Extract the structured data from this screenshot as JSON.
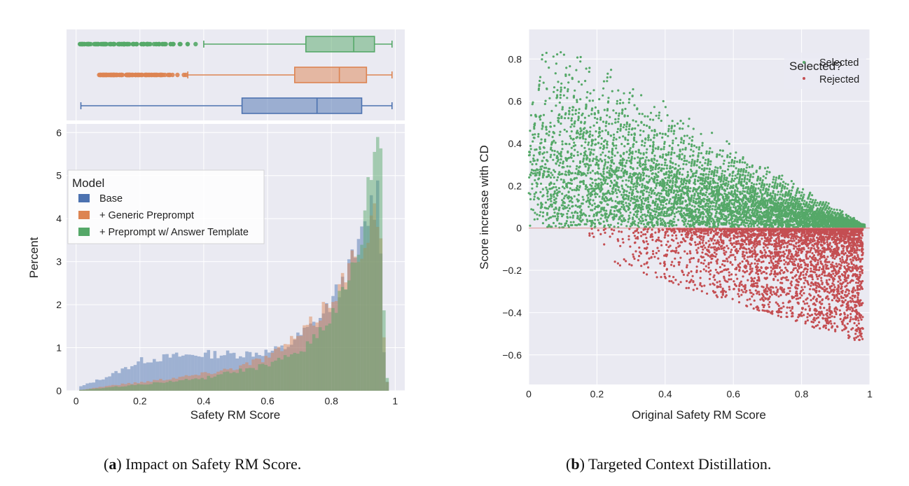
{
  "chart_data": [
    {
      "type": "boxplot",
      "panel": "a-top",
      "orientation": "horizontal",
      "xlim": [
        -0.03,
        1.03
      ],
      "series": [
        {
          "name": "+ Preprompt w/ Answer Template",
          "color": "#55a868",
          "whisker_low": 0.4,
          "q1": 0.72,
          "median": 0.87,
          "q3": 0.935,
          "whisker_high": 0.99,
          "outliers_from": 0.01,
          "outliers_to": 0.4
        },
        {
          "name": "+ Generic Preprompt",
          "color": "#dd8452",
          "whisker_low": 0.35,
          "q1": 0.685,
          "median": 0.825,
          "q3": 0.91,
          "whisker_high": 0.99,
          "outliers_from": 0.07,
          "outliers_to": 0.35
        },
        {
          "name": "Base",
          "color": "#4c72b0",
          "whisker_low": 0.015,
          "q1": 0.52,
          "median": 0.755,
          "q3": 0.895,
          "whisker_high": 0.99,
          "outliers_from": null,
          "outliers_to": null
        }
      ]
    },
    {
      "type": "histogram",
      "panel": "a-bottom",
      "xlabel": "Safety RM Score",
      "ylabel": "Percent",
      "xlim": [
        -0.03,
        1.03
      ],
      "ylim": [
        0,
        6.2
      ],
      "xticks": [
        "0",
        "0.2",
        "0.4",
        "0.6",
        "0.8",
        "1"
      ],
      "xtick_values": [
        0,
        0.2,
        0.4,
        0.6,
        0.8,
        1
      ],
      "yticks": [
        "0",
        "1",
        "2",
        "3",
        "4",
        "5",
        "6"
      ],
      "ytick_values": [
        0,
        1,
        2,
        3,
        4,
        5,
        6
      ],
      "bin_width": 0.01,
      "bins_start": 0.01,
      "series": [
        {
          "name": "Base",
          "color": "#4c72b0",
          "anchors": [
            [
              0.01,
              0.1
            ],
            [
              0.1,
              0.35
            ],
            [
              0.2,
              0.7
            ],
            [
              0.3,
              0.8
            ],
            [
              0.4,
              0.85
            ],
            [
              0.5,
              0.85
            ],
            [
              0.6,
              0.9
            ],
            [
              0.65,
              1.0
            ],
            [
              0.7,
              1.3
            ],
            [
              0.75,
              1.6
            ],
            [
              0.8,
              2.1
            ],
            [
              0.85,
              2.8
            ],
            [
              0.88,
              3.3
            ],
            [
              0.9,
              3.8
            ],
            [
              0.92,
              4.3
            ],
            [
              0.94,
              4.6
            ],
            [
              0.95,
              3.5
            ],
            [
              0.96,
              1.0
            ],
            [
              0.97,
              0.2
            ]
          ]
        },
        {
          "name": "+ Generic Preprompt",
          "color": "#dd8452",
          "anchors": [
            [
              0.01,
              0.02
            ],
            [
              0.1,
              0.12
            ],
            [
              0.2,
              0.2
            ],
            [
              0.3,
              0.3
            ],
            [
              0.4,
              0.4
            ],
            [
              0.5,
              0.55
            ],
            [
              0.6,
              0.8
            ],
            [
              0.65,
              1.05
            ],
            [
              0.7,
              1.3
            ],
            [
              0.75,
              1.7
            ],
            [
              0.8,
              2.2
            ],
            [
              0.85,
              2.8
            ],
            [
              0.88,
              3.3
            ],
            [
              0.9,
              3.6
            ],
            [
              0.92,
              4.0
            ],
            [
              0.94,
              4.2
            ],
            [
              0.95,
              3.2
            ],
            [
              0.96,
              1.2
            ],
            [
              0.97,
              0.2
            ]
          ]
        },
        {
          "name": "+ Preprompt w/ Answer Template",
          "color": "#55a868",
          "anchors": [
            [
              0.01,
              0.02
            ],
            [
              0.1,
              0.08
            ],
            [
              0.2,
              0.15
            ],
            [
              0.3,
              0.22
            ],
            [
              0.4,
              0.3
            ],
            [
              0.5,
              0.45
            ],
            [
              0.6,
              0.6
            ],
            [
              0.65,
              0.75
            ],
            [
              0.7,
              0.95
            ],
            [
              0.75,
              1.3
            ],
            [
              0.8,
              1.8
            ],
            [
              0.85,
              2.5
            ],
            [
              0.88,
              3.2
            ],
            [
              0.9,
              4.0
            ],
            [
              0.92,
              5.0
            ],
            [
              0.93,
              5.6
            ],
            [
              0.94,
              5.95
            ],
            [
              0.95,
              5.3
            ],
            [
              0.96,
              2.0
            ],
            [
              0.97,
              0.3
            ]
          ]
        }
      ],
      "legend": {
        "title": "Model",
        "position": "upper left",
        "labels": [
          "Base",
          "+ Generic Preprompt",
          "+ Preprompt w/ Answer Template"
        ]
      }
    },
    {
      "type": "scatter",
      "panel": "b",
      "xlabel": "Original Safety RM Score",
      "ylabel": "Score increase with CD",
      "xlim": [
        0,
        1
      ],
      "ylim": [
        -0.74,
        0.94
      ],
      "xticks": [
        "0",
        "0.2",
        "0.4",
        "0.6",
        "0.8",
        "1"
      ],
      "xtick_values": [
        0,
        0.2,
        0.4,
        0.6,
        0.8,
        1
      ],
      "yticks": [
        "−0.6",
        "−0.4",
        "−0.2",
        "0",
        "0.2",
        "0.4",
        "0.6",
        "0.8"
      ],
      "ytick_values": [
        -0.6,
        -0.4,
        -0.2,
        0,
        0.2,
        0.4,
        0.6,
        0.8
      ],
      "series": [
        {
          "name": "Selected",
          "color": "#55a868",
          "n_points": 5200,
          "region": "0 <= y <= (1 - x)",
          "density": "highest near y=0"
        },
        {
          "name": "Rejected",
          "color": "#c44e52",
          "n_points": 3200,
          "region": "-0.63 <= y < 0",
          "density": "increases with x"
        }
      ],
      "legend": {
        "title": "Selected?",
        "position": "upper right",
        "labels": [
          "Selected",
          "Rejected"
        ]
      }
    }
  ],
  "captions": {
    "a": {
      "tag": "a",
      "text": "Impact on Safety RM Score."
    },
    "b": {
      "tag": "b",
      "text": "Targeted Context Distillation."
    }
  }
}
